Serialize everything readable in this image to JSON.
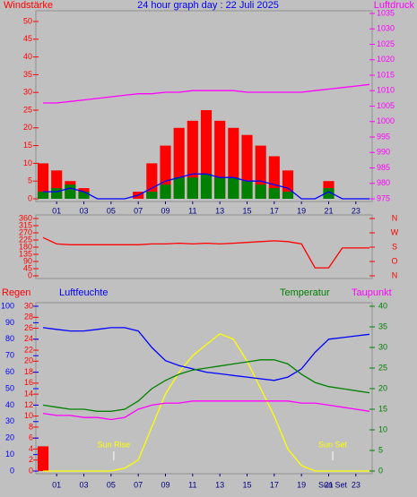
{
  "chart_data": [
    {
      "type": "line",
      "title": "24 hour graph day : 22 Juli 2025",
      "y_label": "Windstärke",
      "y2_label": "Luftdruck",
      "x": [
        0,
        1,
        2,
        3,
        4,
        5,
        6,
        7,
        8,
        9,
        10,
        11,
        12,
        13,
        14,
        15,
        16,
        17,
        18,
        19,
        20,
        21,
        22,
        23,
        24
      ],
      "xlim": [
        0,
        24
      ],
      "xticks": [
        {
          "value": 1,
          "label": "01"
        },
        {
          "value": 3,
          "label": "03"
        },
        {
          "value": 5,
          "label": "05"
        },
        {
          "value": 7,
          "label": "07"
        },
        {
          "value": 9,
          "label": "09"
        },
        {
          "value": 11,
          "label": "11"
        },
        {
          "value": 13,
          "label": "13"
        },
        {
          "value": 15,
          "label": "15"
        },
        {
          "value": 17,
          "label": "17"
        },
        {
          "value": 19,
          "label": "19"
        },
        {
          "value": 21,
          "label": "21"
        },
        {
          "value": 23,
          "label": "23"
        }
      ],
      "ylim": [
        0,
        50
      ],
      "yticks": [
        0,
        5,
        10,
        15,
        20,
        25,
        30,
        35,
        40,
        45,
        50
      ],
      "y2lim": [
        975,
        1035
      ],
      "y2ticks": [
        975,
        980,
        985,
        990,
        995,
        1000,
        1005,
        1010,
        1015,
        1020,
        1025,
        1030,
        1035
      ],
      "series": [
        {
          "color": "#ff0000",
          "style": "bars",
          "values": [
            10,
            8,
            5,
            3,
            0,
            0,
            0,
            2,
            10,
            15,
            20,
            22,
            25,
            22,
            20,
            18,
            15,
            12,
            8,
            0,
            0,
            5,
            0,
            0,
            0
          ]
        },
        {
          "color": "#008000",
          "style": "bars",
          "values": [
            2,
            3,
            4,
            2,
            0,
            0,
            0,
            0,
            2,
            4,
            6,
            6,
            7,
            6,
            6,
            5,
            4,
            3,
            2,
            0,
            0,
            3,
            0,
            0,
            0
          ]
        },
        {
          "color": "#0000ff",
          "style": "line",
          "values": [
            2,
            2,
            3,
            2,
            0,
            0,
            0,
            1,
            3,
            5,
            6,
            7,
            7,
            6,
            6,
            5,
            5,
            4,
            3,
            0,
            0,
            2,
            0,
            0,
            0
          ]
        },
        {
          "color": "#ff00ff",
          "style": "line",
          "axis": "y2",
          "values": [
            1006,
            1006,
            1006.5,
            1007,
            1007.5,
            1008,
            1008.5,
            1009,
            1009,
            1009.5,
            1009.5,
            1010,
            1010,
            1010,
            1010,
            1009.5,
            1009.5,
            1009.5,
            1009.5,
            1009.5,
            1010,
            1010.5,
            1011,
            1011.5,
            1012
          ]
        }
      ]
    },
    {
      "type": "line",
      "x": [
        0,
        1,
        2,
        3,
        4,
        5,
        6,
        7,
        8,
        9,
        10,
        11,
        12,
        13,
        14,
        15,
        16,
        17,
        18,
        19,
        20,
        21,
        22,
        23,
        24
      ],
      "xlim": [
        0,
        24
      ],
      "ylim": [
        0,
        360
      ],
      "yticks": [
        0,
        45,
        90,
        135,
        180,
        225,
        270,
        315,
        360
      ],
      "y2ticks": [
        {
          "value": 360,
          "label": "N"
        },
        {
          "value": 270,
          "label": "W"
        },
        {
          "value": 180,
          "label": "S"
        },
        {
          "value": 90,
          "label": "O"
        },
        {
          "value": 0,
          "label": "N"
        }
      ],
      "series": [
        {
          "color": "#ff0000",
          "values": [
            240,
            200,
            195,
            195,
            195,
            195,
            195,
            195,
            200,
            200,
            205,
            200,
            205,
            200,
            205,
            210,
            215,
            220,
            215,
            200,
            50,
            50,
            175,
            175,
            175
          ]
        }
      ]
    },
    {
      "type": "line",
      "y_label": "Regen",
      "y3_label": "Luftfeuchte",
      "y2_label": "Temperatur",
      "y4_label": "Taupunkt",
      "x": [
        0,
        1,
        2,
        3,
        4,
        5,
        6,
        7,
        8,
        9,
        10,
        11,
        12,
        13,
        14,
        15,
        16,
        17,
        18,
        19,
        20,
        21,
        22,
        23,
        24
      ],
      "xlim": [
        0,
        24
      ],
      "xticks": [
        {
          "value": 1,
          "label": "01"
        },
        {
          "value": 3,
          "label": "03"
        },
        {
          "value": 5,
          "label": "05"
        },
        {
          "value": 7,
          "label": "07"
        },
        {
          "value": 9,
          "label": "09"
        },
        {
          "value": 11,
          "label": "11"
        },
        {
          "value": 13,
          "label": "13"
        },
        {
          "value": 15,
          "label": "15"
        },
        {
          "value": 17,
          "label": "17"
        },
        {
          "value": 19,
          "label": "19"
        },
        {
          "value": 21,
          "label": "21"
        },
        {
          "value": 23,
          "label": "23"
        }
      ],
      "ylim": [
        0,
        30
      ],
      "yticks": [
        0,
        2,
        4,
        6,
        8,
        10,
        12,
        14,
        16,
        18,
        20,
        22,
        24,
        26,
        28,
        30
      ],
      "y3lim": [
        0,
        100
      ],
      "y3ticks": [
        0,
        10,
        20,
        30,
        40,
        50,
        60,
        70,
        80,
        90,
        100
      ],
      "y2lim": [
        0,
        40
      ],
      "y2ticks": [
        0,
        5,
        10,
        15,
        20,
        25,
        30,
        35,
        40
      ],
      "annotations": [
        {
          "text": "Sun Rise",
          "x": 5.2
        },
        {
          "text": "Sun Set",
          "x": 21.3
        }
      ],
      "sunset_axis_label": "Sun Set",
      "series": [
        {
          "color": "#ff0000",
          "style": "bars",
          "values": [
            4.5,
            0,
            0,
            0,
            0,
            0,
            0,
            0,
            0,
            0,
            0,
            0,
            0,
            0,
            0,
            0,
            0,
            0,
            0,
            0,
            0,
            0,
            0,
            0,
            0
          ]
        },
        {
          "color": "#ffff00",
          "values": [
            0,
            0,
            0,
            0,
            0,
            0,
            0.5,
            2,
            8,
            14,
            18,
            21,
            23,
            25,
            24,
            20,
            15,
            10,
            4,
            1,
            0,
            0,
            0,
            0,
            0
          ]
        },
        {
          "color": "#0000ff",
          "axis": "y3",
          "values": [
            87,
            86,
            85,
            85,
            86,
            87,
            87,
            85,
            75,
            67,
            64,
            62,
            60,
            59,
            58,
            57,
            56,
            55,
            57,
            62,
            72,
            80,
            81,
            82,
            83
          ]
        },
        {
          "color": "#008000",
          "axis": "y2",
          "values": [
            16,
            15.5,
            15,
            15,
            14.5,
            14.5,
            15,
            17,
            20,
            22,
            23.5,
            24.5,
            25,
            25.5,
            26,
            26.5,
            27,
            27,
            26,
            23.5,
            21.5,
            20.5,
            20,
            19.5,
            19
          ]
        },
        {
          "color": "#ff00ff",
          "axis": "y2",
          "values": [
            14,
            13.5,
            13.5,
            13,
            13,
            12.5,
            13,
            15,
            16,
            16.5,
            16.5,
            17,
            17,
            17,
            17,
            17,
            17,
            17,
            17,
            16.5,
            16.5,
            16,
            15.5,
            15,
            14.5
          ]
        }
      ]
    }
  ]
}
